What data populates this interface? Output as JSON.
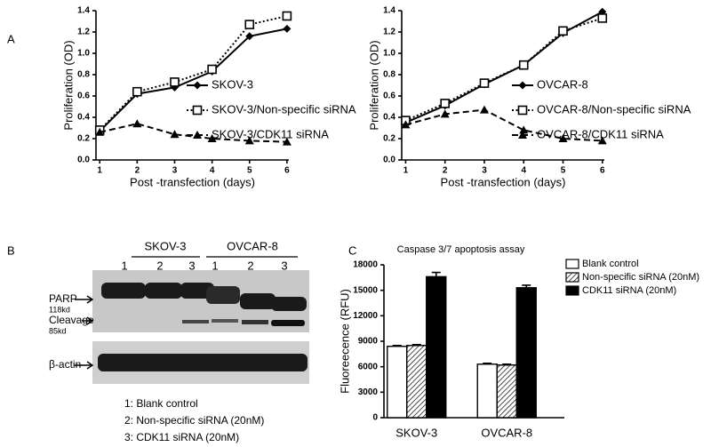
{
  "panel_labels": [
    "A",
    "B",
    "C"
  ],
  "blot": {
    "groups": [
      "SKOV-3",
      "OVCAR-8"
    ],
    "lanes": [
      "1",
      "2",
      "3",
      "1",
      "2",
      "3"
    ],
    "bands": [
      "PARP",
      "118kd",
      "Cleavage",
      "85kd",
      "β-actin"
    ],
    "legend": [
      "1: Blank control",
      "2: Non-specific siRNA (20nM)",
      "3: CDK11 siRNA (20nM)"
    ]
  },
  "chart_data": [
    {
      "type": "line",
      "x_label": "Post -transfection (days)",
      "y_label": "Proliferation (OD)",
      "x": [
        1,
        2,
        3,
        4,
        5,
        6
      ],
      "xlim": [
        0.9,
        6.05
      ],
      "xticks": [
        1,
        2,
        3,
        4,
        5,
        6
      ],
      "ylim": [
        0,
        1.4
      ],
      "yticks": [
        {
          "value": 0,
          "label": "0.0"
        },
        0.2,
        0.4,
        0.6,
        0.8,
        {
          "value": 1,
          "label": "1.0"
        },
        1.2,
        1.4
      ],
      "legend": "center right",
      "series": [
        {
          "name": "SKOV-3",
          "color": "#000000",
          "marker": "diamond",
          "dash": "solid",
          "values": [
            0.27,
            0.62,
            0.68,
            0.83,
            1.16,
            1.23
          ]
        },
        {
          "name": "SKOV-3/Non-specific siRNA",
          "color": "#000000",
          "marker": "square",
          "dash": "dotted",
          "values": [
            0.28,
            0.64,
            0.73,
            0.85,
            1.27,
            1.35
          ]
        },
        {
          "name": "SKOV-3/CDK11 siRNA",
          "color": "#000000",
          "marker": "triangle",
          "dash": "dashed",
          "values": [
            0.26,
            0.34,
            0.24,
            0.2,
            0.18,
            0.17
          ]
        }
      ]
    },
    {
      "type": "line",
      "x_label": "Post -transfection (days)",
      "y_label": "Proliferation (OD)",
      "x": [
        1,
        2,
        3,
        4,
        5,
        6
      ],
      "xlim": [
        0.9,
        6.05
      ],
      "xticks": [
        1,
        2,
        3,
        4,
        5,
        6
      ],
      "ylim": [
        0,
        1.4
      ],
      "yticks": [
        {
          "value": 0,
          "label": "0.0"
        },
        0.2,
        0.4,
        0.6,
        0.8,
        {
          "value": 1,
          "label": "1.0"
        },
        1.2,
        1.4
      ],
      "legend": "center right",
      "series": [
        {
          "name": "OVCAR-8",
          "color": "#000000",
          "marker": "diamond",
          "dash": "solid",
          "values": [
            0.35,
            0.51,
            0.71,
            0.89,
            1.19,
            1.39
          ]
        },
        {
          "name": "OVCAR-8/Non-specific siRNA",
          "color": "#000000",
          "marker": "square",
          "dash": "dotted",
          "values": [
            0.37,
            0.53,
            0.72,
            0.89,
            1.21,
            1.33
          ]
        },
        {
          "name": "OVCAR-8/CDK11 siRNA",
          "color": "#000000",
          "marker": "triangle",
          "dash": "dashed",
          "values": [
            0.33,
            0.43,
            0.47,
            0.28,
            0.2,
            0.18
          ]
        }
      ]
    },
    {
      "type": "bar",
      "title": "Caspase 3/7 apoptosis assay",
      "y_label": "Fluoreecence (RFU)",
      "categories": [
        "SKOV-3",
        "OVCAR-8"
      ],
      "ylim": [
        0,
        18000
      ],
      "yticks": [
        0,
        3000,
        6000,
        9000,
        12000,
        15000,
        18000
      ],
      "legend": "upper right",
      "series": [
        {
          "name": "Blank control",
          "color": "#ffffff",
          "pattern": "solid",
          "values": [
            8400,
            6300
          ],
          "errors": [
            100,
            100
          ]
        },
        {
          "name": "Non-specific siRNA (20nM)",
          "color": "#ffffff",
          "pattern": "hatch",
          "values": [
            8500,
            6200
          ],
          "errors": [
            100,
            100
          ]
        },
        {
          "name": "CDK11 siRNA (20nM)",
          "color": "#000000",
          "pattern": "solid",
          "values": [
            16600,
            15300
          ],
          "errors": [
            500,
            300
          ]
        }
      ]
    }
  ]
}
